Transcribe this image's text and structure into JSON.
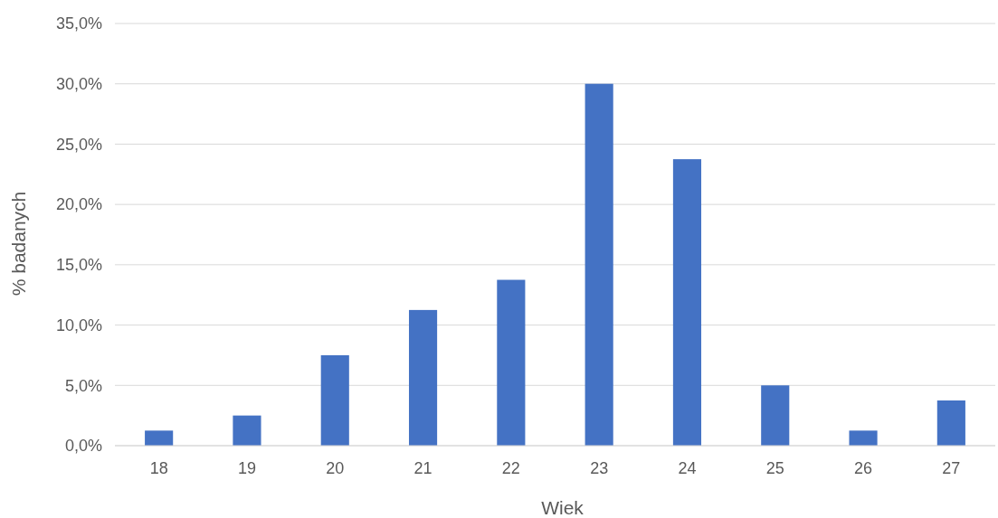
{
  "chart_data": {
    "type": "bar",
    "xlabel": "Wiek",
    "ylabel": "% badanych",
    "categories": [
      "18",
      "19",
      "20",
      "21",
      "22",
      "23",
      "24",
      "25",
      "26",
      "27"
    ],
    "values": [
      1.25,
      2.5,
      7.5,
      11.25,
      13.75,
      30,
      23.75,
      5,
      1.25,
      3.75
    ],
    "color": "#4472c4",
    "ylim": [
      0,
      35
    ],
    "yticks": [
      {
        "value": 0,
        "label": "0,0%"
      },
      {
        "value": 5,
        "label": "5,0%"
      },
      {
        "value": 10,
        "label": "10,0%"
      },
      {
        "value": 15,
        "label": "15,0%"
      },
      {
        "value": 20,
        "label": "20,0%"
      },
      {
        "value": 25,
        "label": "25,0%"
      },
      {
        "value": 30,
        "label": "30,0%"
      },
      {
        "value": 35,
        "label": "35,0%"
      }
    ],
    "grid": "y"
  }
}
